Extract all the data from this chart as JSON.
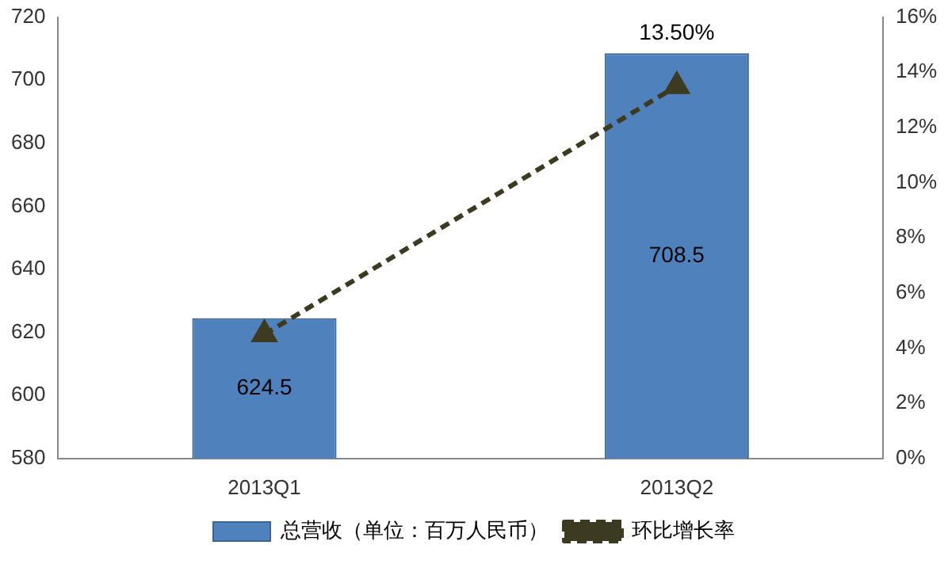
{
  "chart_data": {
    "type": "bar",
    "categories": [
      "2013Q1",
      "2013Q2"
    ],
    "series": [
      {
        "name": "总营收（单位：百万人民币）",
        "color": "#4f81bd",
        "values": [
          624.5,
          708.5
        ],
        "value_labels": [
          "624.5",
          "708.5"
        ]
      },
      {
        "name": "环比增长率",
        "type": "line",
        "axis": "y2",
        "color": "#3d3a22",
        "values": [
          4.5,
          13.5
        ],
        "value_labels": [
          null,
          "13.50%"
        ],
        "marker": "triangle",
        "line_style": "dashed"
      }
    ],
    "ylim": [
      580,
      720
    ],
    "yticks": [
      580,
      600,
      620,
      640,
      660,
      680,
      700,
      720
    ],
    "y2lim": [
      0,
      16
    ],
    "y2ticks": [
      {
        "value": 0,
        "label": "0%"
      },
      {
        "value": 2,
        "label": "2%"
      },
      {
        "value": 4,
        "label": "4%"
      },
      {
        "value": 6,
        "label": "6%"
      },
      {
        "value": 8,
        "label": "8%"
      },
      {
        "value": 10,
        "label": "10%"
      },
      {
        "value": 12,
        "label": "12%"
      },
      {
        "value": 14,
        "label": "14%"
      },
      {
        "value": 16,
        "label": "16%"
      }
    ],
    "grid": false,
    "legend": "bottom"
  }
}
